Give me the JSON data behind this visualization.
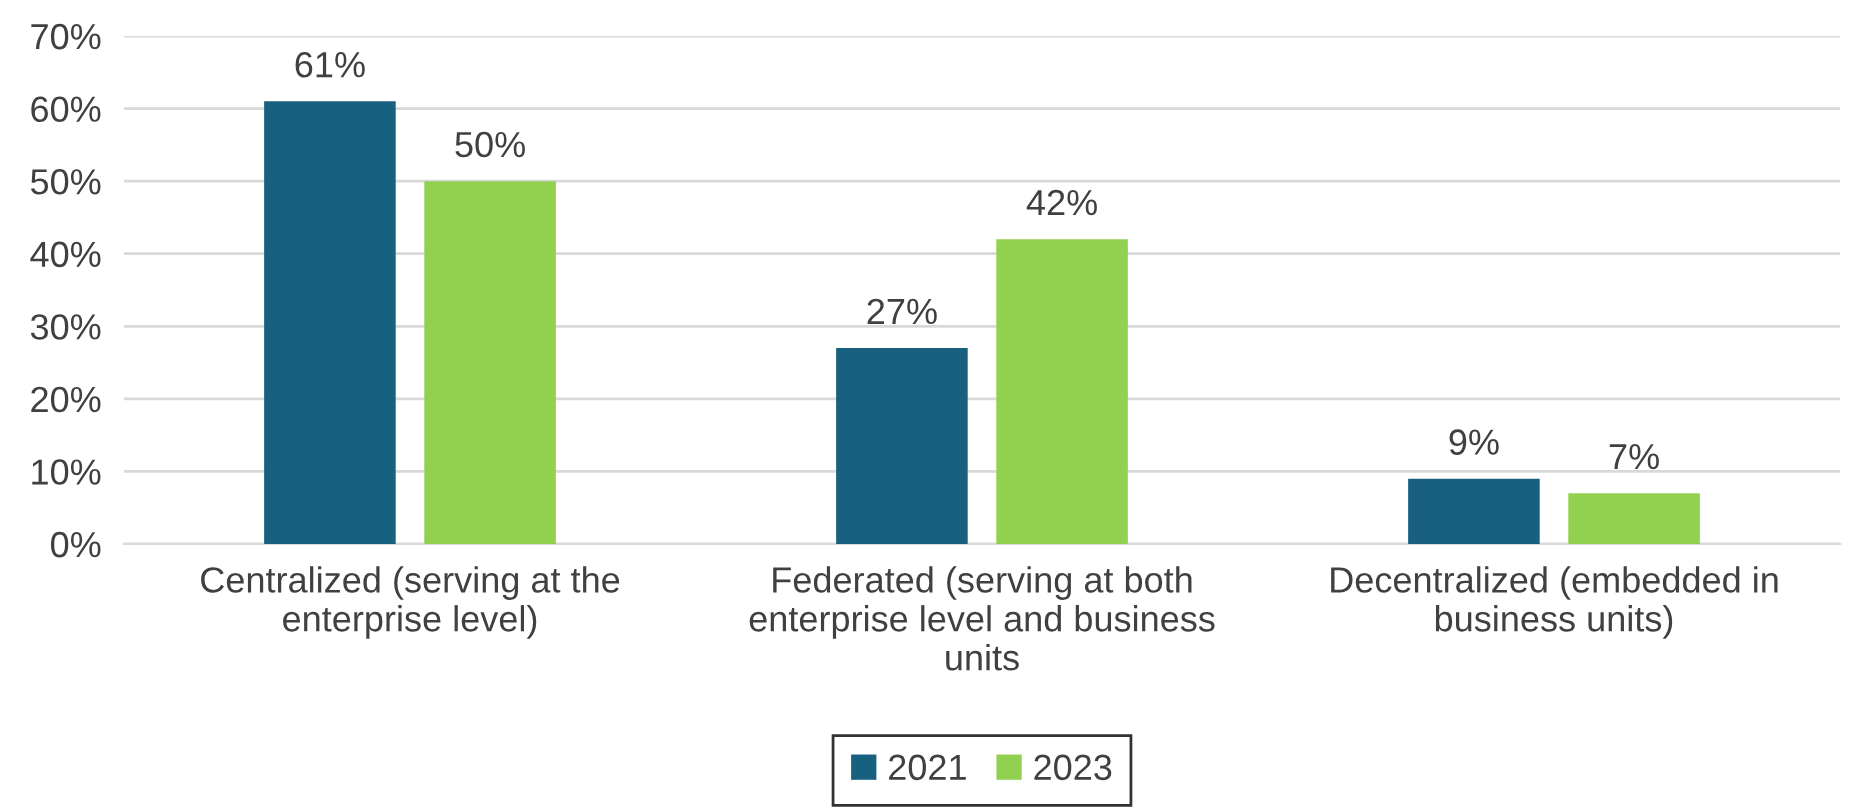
{
  "chart_data": {
    "type": "bar",
    "categories": [
      "Centralized (serving at the\nenterprise level)",
      "Federated (serving at both\nenterprise level and business\nunits",
      "Decentralized (embedded in\nbusiness units)"
    ],
    "series": [
      {
        "name": "2021",
        "color": "#17607f",
        "values": [
          61,
          27,
          9
        ],
        "value_labels": [
          "61%",
          "27%",
          "9%"
        ]
      },
      {
        "name": "2023",
        "color": "#92d050",
        "values": [
          50,
          42,
          7
        ],
        "value_labels": [
          "50%",
          "42%",
          "7%"
        ]
      }
    ],
    "ylim": [
      0,
      70
    ],
    "yticks": [
      {
        "value": 0,
        "label": "0%"
      },
      {
        "value": 10,
        "label": "10%"
      },
      {
        "value": 20,
        "label": "20%"
      },
      {
        "value": 30,
        "label": "30%"
      },
      {
        "value": 40,
        "label": "40%"
      },
      {
        "value": 50,
        "label": "50%"
      },
      {
        "value": 60,
        "label": "60%"
      },
      {
        "value": 70,
        "label": "70%"
      }
    ],
    "grid": "y",
    "legend": "bottom"
  }
}
